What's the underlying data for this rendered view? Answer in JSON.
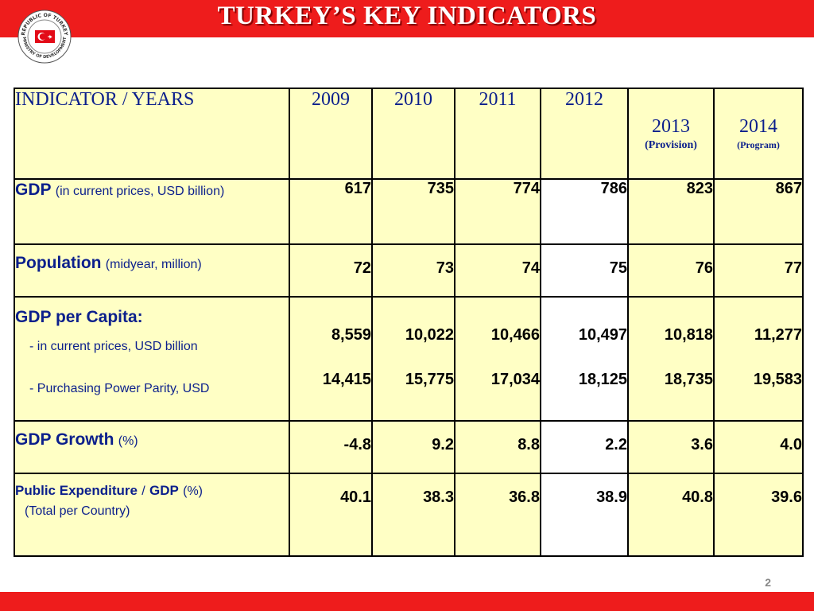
{
  "header": {
    "title": "TURKEY’S KEY INDICATORS",
    "logo_text_top": "REPUBLIC OF TURKEY",
    "logo_text_bottom": "MINISTRY OF DEVELOPMENT"
  },
  "colors": {
    "accent_red": "#ee1c1c",
    "table_fill": "#ffffc5",
    "label_blue": "#0b1f8c"
  },
  "table": {
    "header_label": "INDICATOR / YEARS",
    "years": [
      {
        "year": "2009",
        "note": ""
      },
      {
        "year": "2010",
        "note": ""
      },
      {
        "year": "2011",
        "note": ""
      },
      {
        "year": "2012",
        "note": ""
      },
      {
        "year": "2013",
        "note": "(Provision)"
      },
      {
        "year": "2014",
        "note": "(Program)"
      }
    ],
    "rows": {
      "gdp": {
        "label": "GDP",
        "unit": "(in current prices, USD billion)",
        "values": [
          "617",
          "735",
          "774",
          "786",
          "823",
          "867"
        ]
      },
      "population": {
        "label": "Population",
        "unit": "(midyear, million)",
        "values": [
          "72",
          "73",
          "74",
          "75",
          "76",
          "77"
        ]
      },
      "gdp_per_capita": {
        "label": "GDP per Capita:",
        "sub1": "- in current prices, USD billion",
        "sub2": "- Purchasing Power Parity, USD",
        "values1": [
          "8,559",
          "10,022",
          "10,466",
          "10,497",
          "10,818",
          "11,277"
        ],
        "values2": [
          "14,415",
          "15,775",
          "17,034",
          "18,125",
          "18,735",
          "19,583"
        ]
      },
      "gdp_growth": {
        "label": "GDP Growth",
        "unit": "(%)",
        "values": [
          "-4.8",
          "9.2",
          "8.8",
          "2.2",
          "3.6",
          "4.0"
        ]
      },
      "public_expenditure": {
        "label_a": "Public Expenditure",
        "label_sep": "/",
        "label_b": "GDP",
        "unit": "(%)",
        "sub": "(Total per Country)",
        "values": [
          "40.1",
          "38.3",
          "36.8",
          "38.9",
          "40.8",
          "39.6"
        ]
      }
    }
  },
  "footer": {
    "page_number": "2"
  }
}
